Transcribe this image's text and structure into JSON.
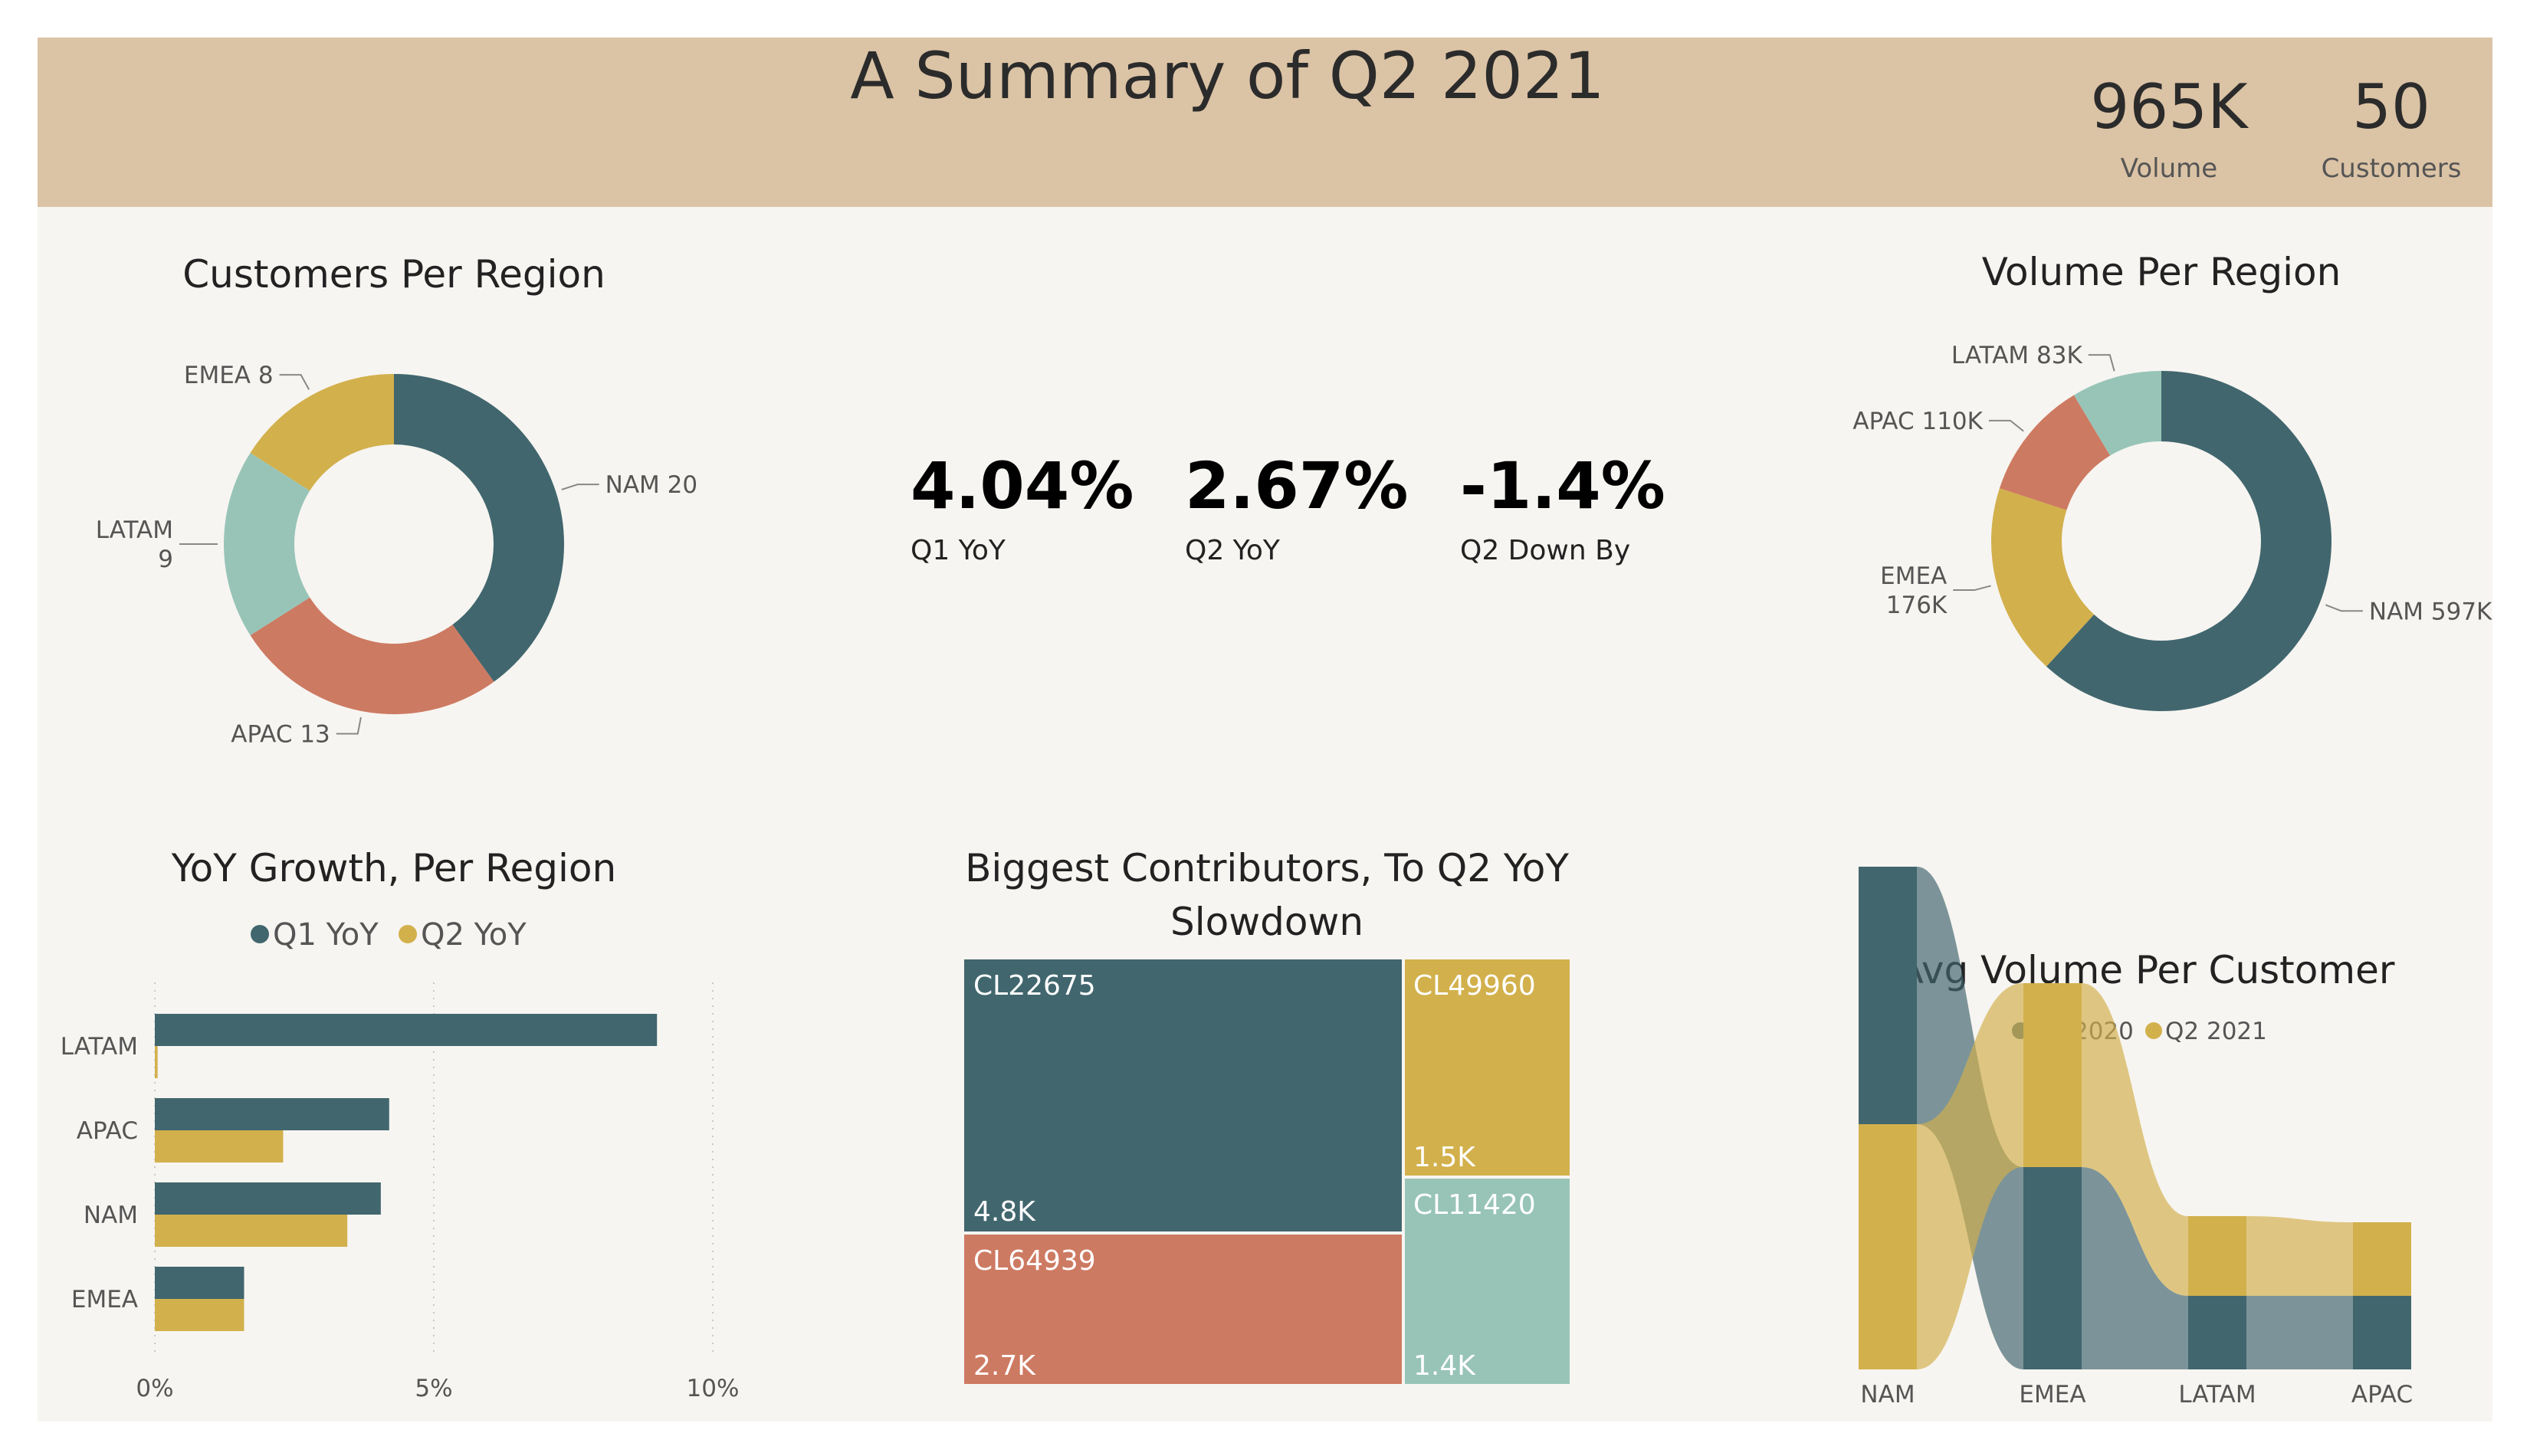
{
  "header": {
    "title": "A Summary of Q2 2021",
    "volume_value": "965K",
    "volume_label": "Volume",
    "customers_value": "50",
    "customers_label": "Customers"
  },
  "colors": {
    "nam": "#41666e",
    "emea": "#d2b04c",
    "latam": "#98c4b8",
    "apac": "#cd7a62"
  },
  "kpis": [
    {
      "value": "4.04%",
      "label": "Q1 YoY"
    },
    {
      "value": "2.67%",
      "label": "Q2 YoY"
    },
    {
      "value": "-1.4%",
      "label": "Q2 Down By"
    }
  ],
  "chart_data": [
    {
      "type": "pie",
      "title": "Customers Per Region",
      "slices": [
        {
          "name": "NAM",
          "value": 20,
          "label": "NAM 20"
        },
        {
          "name": "APAC",
          "value": 13,
          "label": "APAC 13"
        },
        {
          "name": "LATAM",
          "value": 9,
          "label": "LATAM 9"
        },
        {
          "name": "EMEA",
          "value": 8,
          "label": "EMEA 8"
        }
      ]
    },
    {
      "type": "pie",
      "title": "Volume Per Region",
      "slices": [
        {
          "name": "NAM",
          "value": 597,
          "label": "NAM 597K"
        },
        {
          "name": "EMEA",
          "value": 176,
          "label": "EMEA 176K"
        },
        {
          "name": "APAC",
          "value": 110,
          "label": "APAC 110K"
        },
        {
          "name": "LATAM",
          "value": 83,
          "label": "LATAM 83K"
        }
      ]
    },
    {
      "type": "bar",
      "title": "YoY Growth, Per Region",
      "categories": [
        "LATAM",
        "APAC",
        "NAM",
        "EMEA"
      ],
      "series": [
        {
          "name": "Q1 YoY",
          "values": [
            9.0,
            4.2,
            4.05,
            1.6
          ]
        },
        {
          "name": "Q2 YoY",
          "values": [
            0.05,
            2.3,
            3.45,
            1.6
          ]
        }
      ],
      "xlim": [
        0,
        10
      ],
      "ticks": [
        "0%",
        "5%",
        "10%"
      ]
    },
    {
      "type": "table",
      "title_line1": "Biggest Contributors, To Q2 YoY",
      "title_line2": "Slowdown",
      "items": [
        {
          "name": "CL22675",
          "value": "4.8K"
        },
        {
          "name": "CL49960",
          "value": "1.5K"
        },
        {
          "name": "CL64939",
          "value": "2.7K"
        },
        {
          "name": "CL11420",
          "value": "1.4K"
        }
      ]
    },
    {
      "type": "area",
      "title": "Avg Volume Per Customer",
      "categories": [
        "NAM",
        "EMEA",
        "LATAM",
        "APAC"
      ],
      "series": [
        {
          "name": "Q2 2020",
          "values": [
            4.2,
            3.3,
            1.2,
            1.2
          ]
        },
        {
          "name": "Q2 2021",
          "values": [
            4.0,
            3.0,
            1.3,
            1.2
          ]
        }
      ]
    }
  ]
}
